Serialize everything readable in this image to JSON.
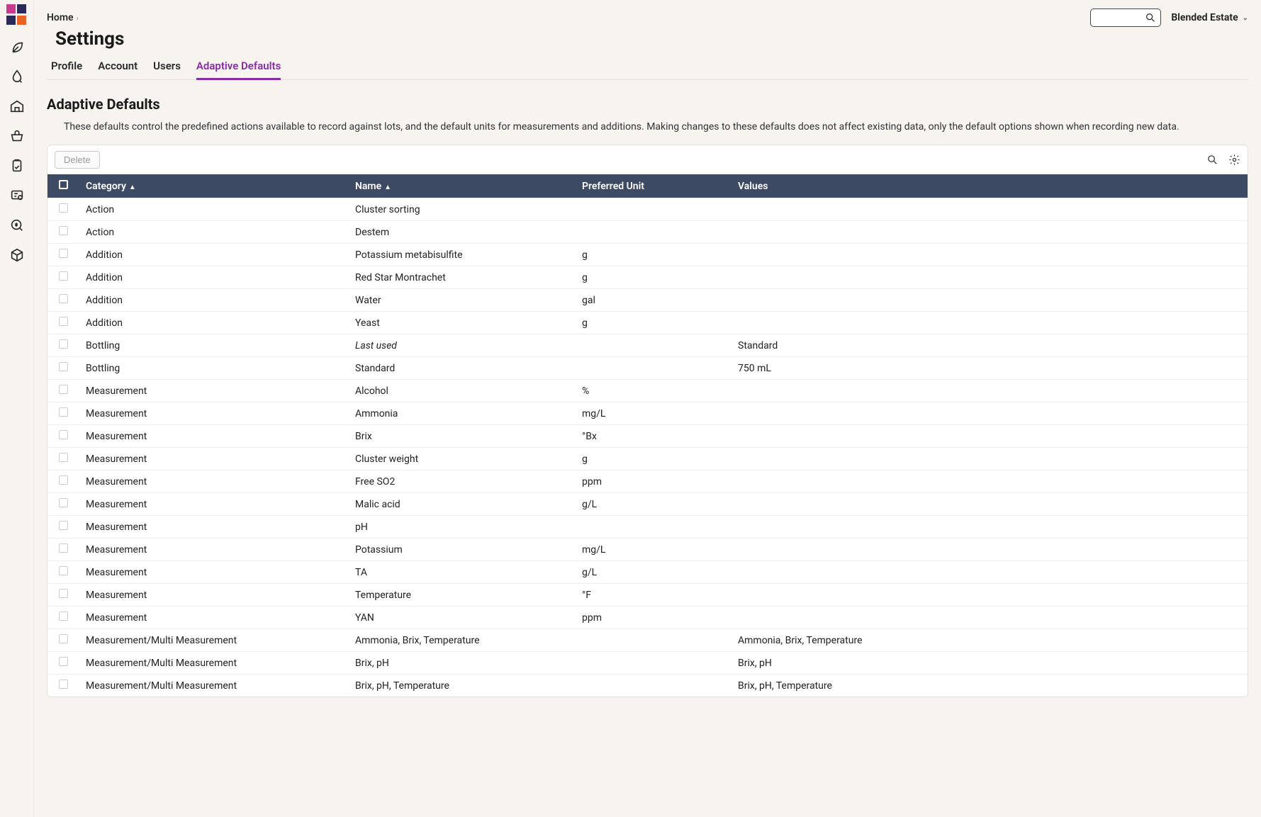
{
  "breadcrumb": {
    "home": "Home"
  },
  "estate": {
    "label": "Blended Estate"
  },
  "page": {
    "title": "Settings"
  },
  "tabs": {
    "profile": "Profile",
    "account": "Account",
    "users": "Users",
    "adaptive": "Adaptive Defaults"
  },
  "section": {
    "title": "Adaptive Defaults",
    "desc": "These defaults control the predefined actions available to record against lots, and the default units for measurements and additions. Making changes to these defaults does not affect existing data, only the default options shown when recording new data."
  },
  "toolbar": {
    "delete": "Delete"
  },
  "columns": {
    "category": "Category",
    "name": "Name",
    "unit": "Preferred Unit",
    "values": "Values"
  },
  "rows": [
    {
      "category": "Action",
      "name": "Cluster sorting",
      "unit": "",
      "values": ""
    },
    {
      "category": "Action",
      "name": "Destem",
      "unit": "",
      "values": ""
    },
    {
      "category": "Addition",
      "name": "Potassium metabisulfite",
      "unit": "g",
      "values": ""
    },
    {
      "category": "Addition",
      "name": "Red Star Montrachet",
      "unit": "g",
      "values": ""
    },
    {
      "category": "Addition",
      "name": "Water",
      "unit": "gal",
      "values": ""
    },
    {
      "category": "Addition",
      "name": "Yeast",
      "unit": "g",
      "values": ""
    },
    {
      "category": "Bottling",
      "name": "Last used",
      "unit": "",
      "values": "Standard",
      "italic": true
    },
    {
      "category": "Bottling",
      "name": "Standard",
      "unit": "",
      "values": "750 mL"
    },
    {
      "category": "Measurement",
      "name": "Alcohol",
      "unit": "%",
      "values": ""
    },
    {
      "category": "Measurement",
      "name": "Ammonia",
      "unit": "mg/L",
      "values": ""
    },
    {
      "category": "Measurement",
      "name": "Brix",
      "unit": "°Bx",
      "values": ""
    },
    {
      "category": "Measurement",
      "name": "Cluster weight",
      "unit": "g",
      "values": ""
    },
    {
      "category": "Measurement",
      "name": "Free SO2",
      "unit": "ppm",
      "values": ""
    },
    {
      "category": "Measurement",
      "name": "Malic acid",
      "unit": "g/L",
      "values": ""
    },
    {
      "category": "Measurement",
      "name": "pH",
      "unit": "",
      "values": ""
    },
    {
      "category": "Measurement",
      "name": "Potassium",
      "unit": "mg/L",
      "values": ""
    },
    {
      "category": "Measurement",
      "name": "TA",
      "unit": "g/L",
      "values": ""
    },
    {
      "category": "Measurement",
      "name": "Temperature",
      "unit": "°F",
      "values": ""
    },
    {
      "category": "Measurement",
      "name": "YAN",
      "unit": "ppm",
      "values": ""
    },
    {
      "category": "Measurement/Multi Measurement",
      "name": "Ammonia, Brix, Temperature",
      "unit": "",
      "values": "Ammonia, Brix, Temperature"
    },
    {
      "category": "Measurement/Multi Measurement",
      "name": "Brix, pH",
      "unit": "",
      "values": "Brix, pH"
    },
    {
      "category": "Measurement/Multi Measurement",
      "name": "Brix, pH, Temperature",
      "unit": "",
      "values": "Brix, pH, Temperature"
    }
  ],
  "colors": {
    "accent": "#8a2ba8",
    "header_bg": "#3d4a63",
    "page_bg": "#f7f4ef",
    "logo_tl": "#c73a8e",
    "logo_tr": "#2a2a5a",
    "logo_bl": "#2a2a5a",
    "logo_br": "#e8632a"
  }
}
